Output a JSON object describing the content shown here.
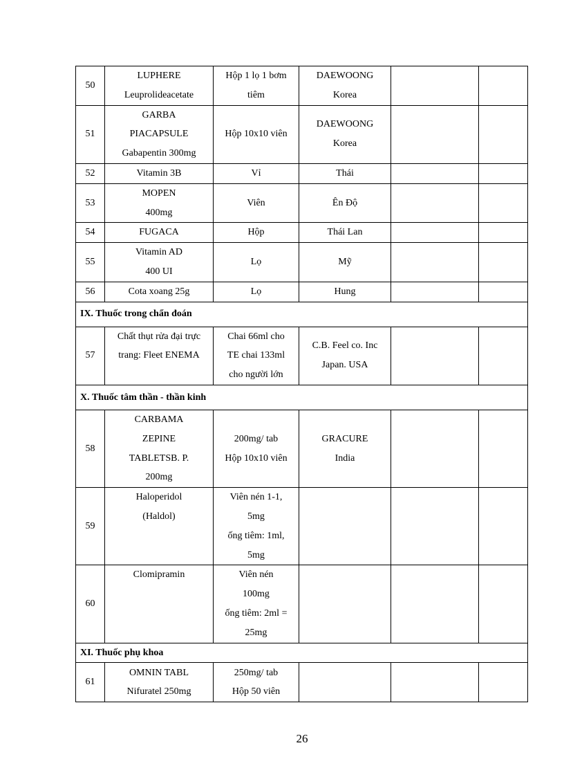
{
  "table": {
    "rows": [
      {
        "type": "item",
        "no": "50",
        "name": [
          "LUPHERE",
          "Leuprolideacetate"
        ],
        "pack": [
          "Hộp 1 lọ 1 bơm",
          "tiêm"
        ],
        "maker": [
          "DAEWOONG",
          "Korea"
        ],
        "c5": [],
        "c6": []
      },
      {
        "type": "item",
        "no": "51",
        "name": [
          "GARBA",
          "PIACAPSULE",
          "Gabapentin  300mg"
        ],
        "pack": [
          "Hộp 10x10 viên"
        ],
        "maker": [
          "DAEWOONG",
          "Korea"
        ],
        "c5": [],
        "c6": []
      },
      {
        "type": "item",
        "no": "52",
        "name": [
          "Vitamin  3B"
        ],
        "pack": [
          "Vỉ"
        ],
        "maker": [
          "Thái"
        ],
        "c5": [],
        "c6": []
      },
      {
        "type": "item",
        "no": "53",
        "name": [
          "MOPEN",
          "400mg"
        ],
        "pack": [
          "Viên"
        ],
        "maker": [
          "Ên Độ"
        ],
        "c5": [],
        "c6": []
      },
      {
        "type": "item",
        "no": "54",
        "name": [
          "FUGACA"
        ],
        "pack": [
          "Hộp"
        ],
        "maker": [
          "Thái Lan"
        ],
        "c5": [],
        "c6": []
      },
      {
        "type": "item",
        "no": "55",
        "name": [
          "Vitamin  AD",
          "400 UI"
        ],
        "pack": [
          "Lọ"
        ],
        "maker": [
          "Mỹ"
        ],
        "c5": [],
        "c6": []
      },
      {
        "type": "item",
        "no": "56",
        "name": [
          "Cota xoang  25g"
        ],
        "pack": [
          "Lọ"
        ],
        "maker": [
          "Hung"
        ],
        "c5": [],
        "c6": []
      },
      {
        "type": "section",
        "title": "IX. Thuốc trong chẩn đoán"
      },
      {
        "type": "item",
        "no": "57",
        "name": [
          "Chất thụt rửa đại trực",
          "trang:  Fleet ENEMA"
        ],
        "pack": [
          "Chai 66ml  cho",
          "TE chai  133ml",
          "cho người lớn"
        ],
        "maker": [
          "C.B. Feel co. Inc",
          "Japan. USA"
        ],
        "c5": [],
        "c6": []
      },
      {
        "type": "section",
        "title": "X. Thuốc  tâm thần - thần kinh"
      },
      {
        "type": "item",
        "no": "58",
        "name": [
          "CARBAMA",
          "ZEPINE",
          "TABLETSB.  P.",
          "200mg"
        ],
        "pack": [
          "200mg/ tab",
          "Hộp 10x10 viên"
        ],
        "maker": [
          "GRACURE",
          "India"
        ],
        "c5": [],
        "c6": []
      },
      {
        "type": "item",
        "no": "59",
        "name": [
          "Haloperidol",
          "(Haldol)"
        ],
        "pack": [
          "Viên nén 1-1,",
          "5mg",
          "ống tiêm:  1ml,",
          "5mg"
        ],
        "maker": [],
        "c5": [],
        "c6": []
      },
      {
        "type": "item",
        "no": "60",
        "name": [
          "Clomipramin"
        ],
        "pack": [
          "Viên nén",
          "100mg",
          "ống tiêm:  2ml =",
          "25mg"
        ],
        "maker": [],
        "c5": [],
        "c6": []
      },
      {
        "type": "section",
        "title": "XI. Thuốc phụ khoa"
      },
      {
        "type": "item",
        "no": "61",
        "name": [
          "OMNIN TABL",
          "Nifuratel  250mg"
        ],
        "pack": [
          "250mg/ tab",
          "Hộp 50 viên"
        ],
        "maker": [],
        "c5": [],
        "c6": []
      }
    ]
  },
  "page_number": "26"
}
